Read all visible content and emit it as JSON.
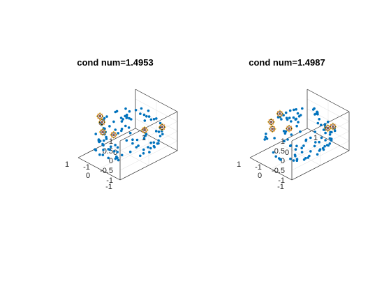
{
  "colors": {
    "points": "#0072bd",
    "circle_marker": "#000000",
    "x_marker": "#d95319",
    "diamond_marker": "#edb120",
    "axes": "#262626",
    "grid": "#e6e6e6"
  },
  "chart_data": [
    {
      "type": "scatter",
      "projection": "3d",
      "title": "cond num=1.4953",
      "xlim": [
        -1,
        1
      ],
      "ylim": [
        -1,
        1
      ],
      "zlim": [
        -1,
        1
      ],
      "xticks": [
        "-1",
        "0",
        "1"
      ],
      "yticks": [
        "-1",
        "0",
        "1"
      ],
      "zticks": [
        "-1",
        "-0.5",
        "0",
        "0.5",
        "1"
      ],
      "grid": true,
      "series": [
        {
          "role": "sample-points",
          "marker": "dot",
          "count": 100
        },
        {
          "role": "selected-points",
          "marker": "circle+x+diamond",
          "points": [
            [
              -0.1,
              -0.95,
              0.9
            ],
            [
              0.55,
              -0.5,
              0.7
            ],
            [
              0.85,
              -0.35,
              0.72
            ],
            [
              -0.55,
              0.8,
              0.1
            ],
            [
              -0.05,
              0.55,
              -0.15
            ],
            [
              0.95,
              0.2,
              -0.7
            ]
          ]
        }
      ]
    },
    {
      "type": "scatter",
      "projection": "3d",
      "title": "cond num=1.4987",
      "xlim": [
        -1,
        1
      ],
      "ylim": [
        -1,
        1
      ],
      "zlim": [
        -1,
        1
      ],
      "xticks": [
        "-1",
        "0",
        "1"
      ],
      "yticks": [
        "-1",
        "0",
        "1"
      ],
      "zticks": [
        "-1",
        "-0.5",
        "0",
        "0.5",
        "1"
      ],
      "grid": true,
      "series": [
        {
          "role": "sample-points",
          "marker": "dot",
          "count": 100
        },
        {
          "role": "selected-points",
          "marker": "circle+x+diamond",
          "points": [
            [
              0.2,
              -0.8,
              0.78
            ],
            [
              0.6,
              -0.25,
              0.92
            ],
            [
              -0.5,
              0.8,
              0.1
            ],
            [
              0.7,
              0.15,
              -0.2
            ],
            [
              -0.05,
              0.95,
              -0.35
            ],
            [
              0.6,
              -0.55,
              0.72
            ]
          ]
        }
      ]
    }
  ]
}
